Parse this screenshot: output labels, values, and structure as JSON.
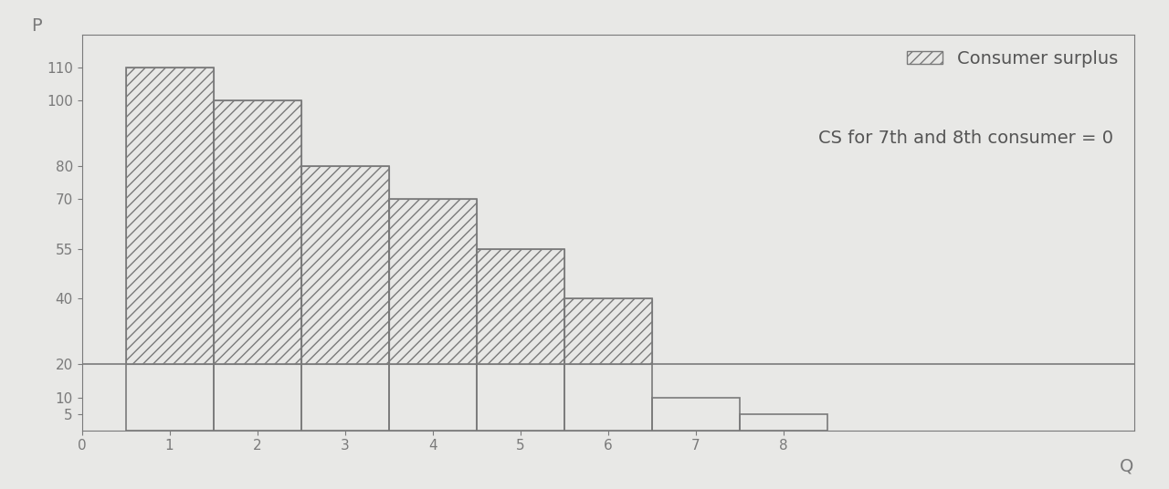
{
  "chart_data": {
    "type": "bar",
    "x": [
      1,
      2,
      3,
      4,
      5,
      6,
      7,
      8
    ],
    "values": [
      110,
      100,
      80,
      70,
      55,
      40,
      10,
      5
    ],
    "price": 20,
    "surplus_label": "Consumer surplus",
    "annotation": "CS for 7th and 8th consumer = 0",
    "x_label": "Q",
    "y_label": "P",
    "xlim": [
      0,
      12
    ],
    "xticks": [
      0,
      1,
      2,
      3,
      4,
      5,
      6,
      7,
      8
    ],
    "ylim": [
      0,
      120
    ],
    "yticks": [
      5,
      10,
      20,
      40,
      55,
      70,
      80,
      100,
      110
    ],
    "color": "#7a7a7a",
    "legend": "upper right",
    "grid": false
  }
}
